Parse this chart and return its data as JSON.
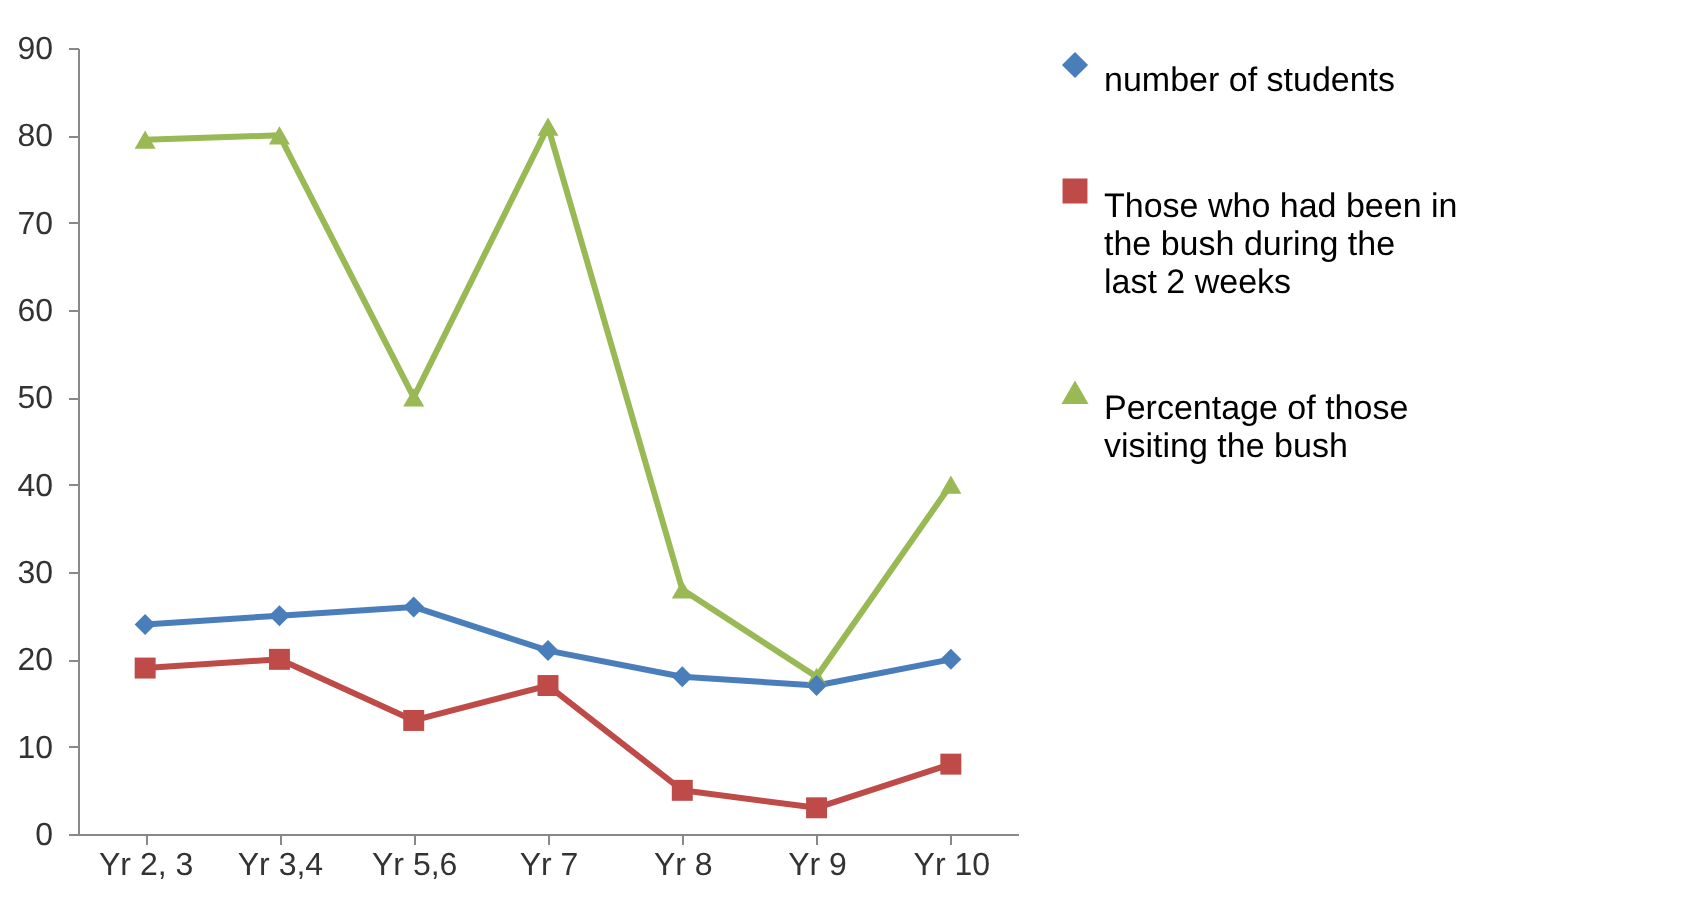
{
  "chart_data": {
    "type": "line",
    "categories": [
      "Yr 2, 3",
      "Yr 3,4",
      "Yr 5,6",
      "Yr 7",
      "Yr 8",
      "Yr 9",
      "Yr 10"
    ],
    "series": [
      {
        "name": "number of students",
        "color": "#4a7ebb",
        "marker": "diamond",
        "values": [
          24,
          25,
          26,
          21,
          18,
          17,
          20
        ]
      },
      {
        "name": "Those who had been in the bush during the last 2 weeks",
        "color": "#be4b48",
        "marker": "square",
        "values": [
          19,
          20,
          13,
          17,
          5,
          3,
          8
        ]
      },
      {
        "name": "Percentage of those visiting the bush",
        "color": "#98b954",
        "marker": "triangle",
        "values": [
          79.5,
          80,
          50,
          81,
          28,
          18,
          40
        ]
      }
    ],
    "ylim": [
      0,
      90
    ],
    "yticks": [
      0,
      10,
      20,
      30,
      40,
      50,
      60,
      70,
      80,
      90
    ],
    "grid": false,
    "legend": "right",
    "line_style": "solid"
  }
}
